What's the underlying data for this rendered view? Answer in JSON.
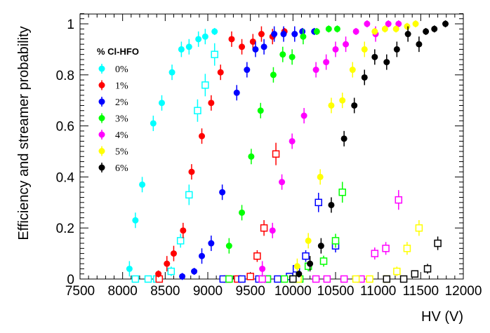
{
  "chart_data": {
    "type": "scatter",
    "xlabel": "HV (V)",
    "ylabel": "Efficiency and streamer probability",
    "xlim": [
      7500,
      12000
    ],
    "ylim": [
      0,
      1.05
    ],
    "x_ticks": [
      7500,
      8000,
      8500,
      9000,
      9500,
      10000,
      10500,
      11000,
      11500,
      12000
    ],
    "x_tick_labels": [
      "7500",
      "8000",
      "8500",
      "9000",
      "9500",
      "10000",
      "10500",
      "11000",
      "11500",
      "12000"
    ],
    "y_ticks": [
      0,
      0.2,
      0.4,
      0.6,
      0.8,
      1
    ],
    "y_tick_labels": [
      "0",
      "0.2",
      "0.4",
      "0.6",
      "0.8",
      "1"
    ],
    "grid": false,
    "legend": {
      "title": "% Cl-HFO",
      "position": "upper-left",
      "marker": "filled circle"
    },
    "marker_meaning": {
      "filled": "efficiency",
      "open_square": "streamer probability"
    },
    "series": [
      {
        "name": "0%",
        "color": "#00ffff",
        "efficiency": [
          [
            8080,
            0.04
          ],
          [
            8150,
            0.23
          ],
          [
            8230,
            0.37
          ],
          [
            8360,
            0.61
          ],
          [
            8460,
            0.69
          ],
          [
            8580,
            0.81
          ],
          [
            8690,
            0.9
          ],
          [
            8780,
            0.91
          ],
          [
            8890,
            0.94
          ],
          [
            8970,
            0.95
          ],
          [
            9080,
            0.97
          ]
        ],
        "streamer": [
          [
            8150,
            0.0
          ],
          [
            8300,
            0.0
          ],
          [
            8400,
            0.0
          ],
          [
            8570,
            0.03
          ],
          [
            8680,
            0.15
          ],
          [
            8780,
            0.33
          ],
          [
            8880,
            0.66
          ],
          [
            8970,
            0.76
          ],
          [
            9080,
            0.88
          ]
        ]
      },
      {
        "name": "1%",
        "color": "#ff0000",
        "efficiency": [
          [
            8420,
            0.02
          ],
          [
            8520,
            0.06
          ],
          [
            8600,
            0.1
          ],
          [
            8710,
            0.19
          ],
          [
            8810,
            0.42
          ],
          [
            8930,
            0.56
          ],
          [
            9040,
            0.69
          ],
          [
            9150,
            0.81
          ],
          [
            9280,
            0.94
          ],
          [
            9400,
            0.91
          ],
          [
            9530,
            0.93
          ],
          [
            9630,
            0.96
          ],
          [
            9760,
            0.95
          ],
          [
            9900,
            0.97
          ]
        ],
        "streamer": [
          [
            8430,
            0.0
          ],
          [
            9230,
            0.0
          ],
          [
            9350,
            0.0
          ],
          [
            9500,
            0.01
          ],
          [
            9580,
            0.09
          ],
          [
            9660,
            0.2
          ],
          [
            9800,
            0.49
          ]
        ]
      },
      {
        "name": "2%",
        "color": "#0000ff",
        "efficiency": [
          [
            8700,
            0.01
          ],
          [
            8840,
            0.03
          ],
          [
            8930,
            0.09
          ],
          [
            9040,
            0.14
          ],
          [
            9170,
            0.34
          ],
          [
            9340,
            0.73
          ],
          [
            9460,
            0.82
          ],
          [
            9560,
            0.9
          ],
          [
            9660,
            0.91
          ],
          [
            9780,
            0.96
          ],
          [
            9890,
            0.96
          ],
          [
            10020,
            0.96
          ],
          [
            10110,
            0.97
          ],
          [
            10250,
            0.97
          ]
        ],
        "streamer": [
          [
            9180,
            0.0
          ],
          [
            9400,
            0.0
          ],
          [
            9600,
            0.0
          ],
          [
            9700,
            0.0
          ],
          [
            9820,
            0.0
          ],
          [
            9960,
            0.01
          ],
          [
            10040,
            0.04
          ],
          [
            10150,
            0.09
          ],
          [
            10300,
            0.3
          ],
          [
            10500,
            0.13
          ]
        ]
      },
      {
        "name": "3%",
        "color": "#00ff00",
        "efficiency": [
          [
            9250,
            0.13
          ],
          [
            9400,
            0.26
          ],
          [
            9510,
            0.48
          ],
          [
            9620,
            0.66
          ],
          [
            9770,
            0.8
          ],
          [
            9880,
            0.88
          ],
          [
            9990,
            0.87
          ],
          [
            10120,
            0.95
          ],
          [
            10280,
            0.97
          ],
          [
            10420,
            0.98
          ],
          [
            10520,
            0.98
          ]
        ],
        "streamer": [
          [
            9250,
            0.0
          ],
          [
            9700,
            0.0
          ],
          [
            9900,
            0.0
          ],
          [
            10000,
            0.0
          ],
          [
            10080,
            0.0
          ],
          [
            10180,
            0.05
          ],
          [
            10360,
            0.07
          ],
          [
            10500,
            0.15
          ],
          [
            10580,
            0.34
          ]
        ]
      },
      {
        "name": "4%",
        "color": "#ff00ff",
        "efficiency": [
          [
            9640,
            0.04
          ],
          [
            9760,
            0.19
          ],
          [
            9870,
            0.38
          ],
          [
            9990,
            0.54
          ],
          [
            10130,
            0.64
          ],
          [
            10270,
            0.82
          ],
          [
            10390,
            0.85
          ],
          [
            10500,
            0.9
          ],
          [
            10620,
            0.92
          ],
          [
            10740,
            0.97
          ],
          [
            10870,
            1.0
          ],
          [
            10970,
            0.96
          ],
          [
            11120,
            1.0
          ],
          [
            11240,
            1.0
          ]
        ],
        "streamer": [
          [
            9640,
            0.0
          ],
          [
            10270,
            0.0
          ],
          [
            10400,
            0.0
          ],
          [
            10600,
            0.0
          ],
          [
            10800,
            0.0
          ],
          [
            10960,
            0.1
          ],
          [
            11090,
            0.12
          ],
          [
            11240,
            0.31
          ]
        ]
      },
      {
        "name": "5%",
        "color": "#ffff00",
        "efficiency": [
          [
            10050,
            0.05
          ],
          [
            10180,
            0.15
          ],
          [
            10320,
            0.4
          ],
          [
            10450,
            0.68
          ],
          [
            10580,
            0.7
          ],
          [
            10700,
            0.82
          ],
          [
            10840,
            0.9
          ],
          [
            10960,
            0.97
          ],
          [
            11080,
            0.98
          ],
          [
            11210,
            0.98
          ],
          [
            11340,
            0.99
          ],
          [
            11440,
            1.0
          ]
        ],
        "streamer": [
          [
            10060,
            0.0
          ],
          [
            10740,
            0.0
          ],
          [
            10900,
            0.0
          ],
          [
            11100,
            0.0
          ],
          [
            11220,
            0.03
          ],
          [
            11340,
            0.12
          ],
          [
            11480,
            0.2
          ]
        ]
      },
      {
        "name": "6%",
        "color": "#000000",
        "efficiency": [
          [
            10070,
            0.02
          ],
          [
            10200,
            0.06
          ],
          [
            10330,
            0.13
          ],
          [
            10450,
            0.29
          ],
          [
            10600,
            0.55
          ],
          [
            10720,
            0.68
          ],
          [
            10840,
            0.79
          ],
          [
            10960,
            0.87
          ],
          [
            11100,
            0.85
          ],
          [
            11220,
            0.9
          ],
          [
            11350,
            0.96
          ],
          [
            11480,
            0.92
          ],
          [
            11560,
            0.97
          ],
          [
            11660,
            0.98
          ],
          [
            11790,
            1.0
          ]
        ],
        "streamer": [
          [
            10000,
            0.0
          ],
          [
            11100,
            0.0
          ],
          [
            11300,
            0.0
          ],
          [
            11430,
            0.02
          ],
          [
            11580,
            0.04
          ],
          [
            11700,
            0.14
          ]
        ]
      }
    ]
  }
}
